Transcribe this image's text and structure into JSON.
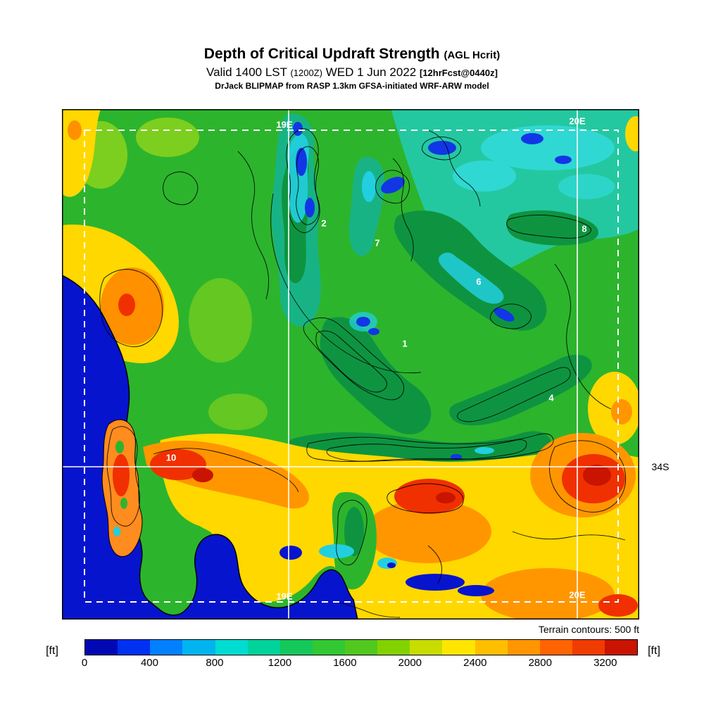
{
  "header": {
    "title": "Depth of Critical Updraft Strength",
    "title_suffix": "(AGL Hcrit)",
    "valid_time": "Valid 1400 LST",
    "valid_zulu": "(1200Z)",
    "valid_date": "WED 1 Jun 2022",
    "fcst_tag": "[12hrFcst@0440z]",
    "model_line": "DrJack BLIPMAP from RASP 1.3km GFSA-initiated WRF-ARW model"
  },
  "map": {
    "grid_labels": [
      {
        "text": "19E",
        "pos": "top-center"
      },
      {
        "text": "20E",
        "pos": "top-right"
      },
      {
        "text": "20E",
        "pos": "bottom-right"
      },
      {
        "text": "19E",
        "pos": "bottom-center"
      },
      {
        "text": "34S",
        "pos": "right-edge"
      }
    ],
    "site_labels": [
      "2",
      "7",
      "8",
      "6",
      "1",
      "4",
      "10"
    ]
  },
  "footer": {
    "terrain_note": "Terrain contours: 500 ft",
    "unit_left": "[ft]",
    "unit_right": "[ft]"
  },
  "chart_data": {
    "type": "heatmap",
    "title": "Depth of Critical Updraft Strength (AGL Hcrit)",
    "subtitle": "Valid 1400 LST (1200Z) WED 1 Jun 2022 [12hrFcst@0440z]",
    "source": "DrJack BLIPMAP from RASP 1.3km GFSA-initiated WRF-ARW model",
    "units": "ft",
    "terrain_contour_interval_ft": 500,
    "geo_grid": {
      "longitude_lines": [
        "19E",
        "20E"
      ],
      "latitude_lines": [
        "34S"
      ]
    },
    "region_labels": [
      "1",
      "2",
      "4",
      "6",
      "7",
      "8",
      "10"
    ],
    "colorbar": {
      "orientation": "horizontal",
      "range_ft": [
        0,
        3400
      ],
      "segment_step_ft": 200,
      "tick_values": [
        0,
        400,
        800,
        1200,
        1600,
        2000,
        2400,
        2800,
        3200
      ],
      "tick_labels": [
        "0",
        "400",
        "800",
        "1200",
        "1600",
        "2000",
        "2400",
        "2800",
        "3200"
      ],
      "colors": [
        "#0008b4",
        "#0030f0",
        "#0080ff",
        "#00b4f0",
        "#00dcd2",
        "#00d29b",
        "#14c85a",
        "#32c832",
        "#50c81e",
        "#82d200",
        "#c8dc00",
        "#ffe600",
        "#ffbe00",
        "#ff9600",
        "#ff6400",
        "#f03c00",
        "#c81400"
      ],
      "ocean_color": "#0714cd"
    }
  }
}
